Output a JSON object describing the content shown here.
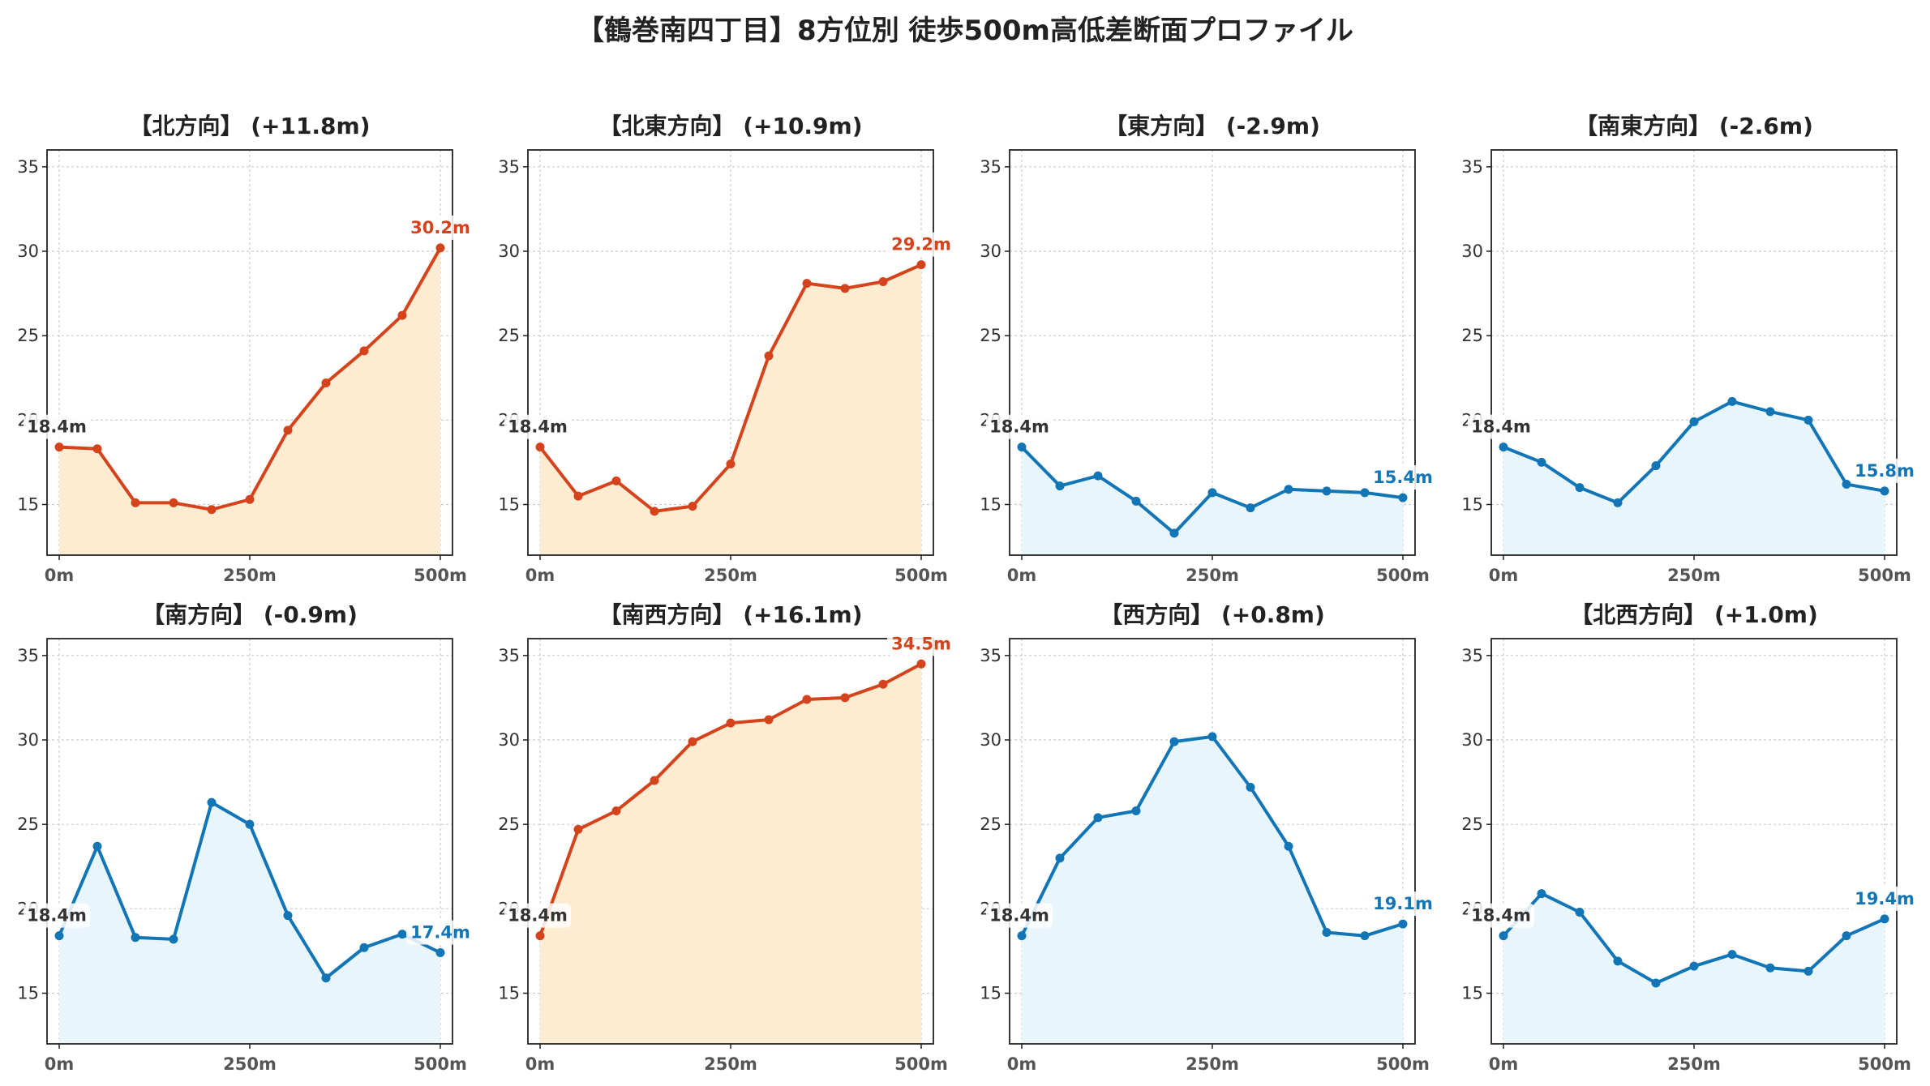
{
  "title": "【鶴巻南四丁目】8方位別 徒歩500m高低差断面プロファイル",
  "colors": {
    "up_line": "#d4431b",
    "up_fill": "#fdecd2",
    "down_line": "#1175b6",
    "down_fill": "#e8f5fb",
    "start_label": "#333333",
    "grid": "#cccccc"
  },
  "chart_data": [
    {
      "type": "area",
      "title": "【北方向】 (+11.8m)",
      "trend": "up",
      "x": [
        0,
        50,
        100,
        150,
        200,
        250,
        300,
        350,
        400,
        450,
        500
      ],
      "y": [
        18.4,
        18.3,
        15.1,
        15.1,
        14.7,
        15.3,
        19.4,
        22.2,
        24.1,
        26.2,
        30.2
      ],
      "start_label": "18.4m",
      "end_label": "30.2m",
      "xticks": [
        "0m",
        "250m",
        "500m"
      ],
      "yticks": [
        "15",
        "20",
        "25",
        "30",
        "35"
      ],
      "xlim": [
        0,
        500
      ],
      "ylim": [
        12,
        36
      ],
      "grid": true
    },
    {
      "type": "area",
      "title": "【北東方向】 (+10.9m)",
      "trend": "up",
      "x": [
        0,
        50,
        100,
        150,
        200,
        250,
        300,
        350,
        400,
        450,
        500
      ],
      "y": [
        18.4,
        15.5,
        16.4,
        14.6,
        14.9,
        17.4,
        23.8,
        28.1,
        27.8,
        28.2,
        29.2
      ],
      "start_label": "18.4m",
      "end_label": "29.2m",
      "xticks": [
        "0m",
        "250m",
        "500m"
      ],
      "yticks": [
        "15",
        "20",
        "25",
        "30",
        "35"
      ],
      "xlim": [
        0,
        500
      ],
      "ylim": [
        12,
        36
      ],
      "grid": true
    },
    {
      "type": "area",
      "title": "【東方向】 (-2.9m)",
      "trend": "down",
      "x": [
        0,
        50,
        100,
        150,
        200,
        250,
        300,
        350,
        400,
        450,
        500
      ],
      "y": [
        18.4,
        16.1,
        16.7,
        15.2,
        13.3,
        15.7,
        14.8,
        15.9,
        15.8,
        15.7,
        15.4
      ],
      "start_label": "18.4m",
      "end_label": "15.4m",
      "xticks": [
        "0m",
        "250m",
        "500m"
      ],
      "yticks": [
        "15",
        "20",
        "25",
        "30",
        "35"
      ],
      "xlim": [
        0,
        500
      ],
      "ylim": [
        12,
        36
      ],
      "grid": true
    },
    {
      "type": "area",
      "title": "【南東方向】 (-2.6m)",
      "trend": "down",
      "x": [
        0,
        50,
        100,
        150,
        200,
        250,
        300,
        350,
        400,
        450,
        500
      ],
      "y": [
        18.4,
        17.5,
        16.0,
        15.1,
        17.3,
        19.9,
        21.1,
        20.5,
        20.0,
        16.2,
        15.8
      ],
      "start_label": "18.4m",
      "end_label": "15.8m",
      "xticks": [
        "0m",
        "250m",
        "500m"
      ],
      "yticks": [
        "15",
        "20",
        "25",
        "30",
        "35"
      ],
      "xlim": [
        0,
        500
      ],
      "ylim": [
        12,
        36
      ],
      "grid": true
    },
    {
      "type": "area",
      "title": "【南方向】 (-0.9m)",
      "trend": "down",
      "x": [
        0,
        50,
        100,
        150,
        200,
        250,
        300,
        350,
        400,
        450,
        500
      ],
      "y": [
        18.4,
        23.7,
        18.3,
        18.2,
        26.3,
        25.0,
        19.6,
        15.9,
        17.7,
        18.5,
        17.4
      ],
      "start_label": "18.4m",
      "end_label": "17.4m",
      "xticks": [
        "0m",
        "250m",
        "500m"
      ],
      "yticks": [
        "15",
        "20",
        "25",
        "30",
        "35"
      ],
      "xlim": [
        0,
        500
      ],
      "ylim": [
        12,
        36
      ],
      "grid": true
    },
    {
      "type": "area",
      "title": "【南西方向】 (+16.1m)",
      "trend": "up",
      "x": [
        0,
        50,
        100,
        150,
        200,
        250,
        300,
        350,
        400,
        450,
        500
      ],
      "y": [
        18.4,
        24.7,
        25.8,
        27.6,
        29.9,
        31.0,
        31.2,
        32.4,
        32.5,
        33.3,
        34.5
      ],
      "start_label": "18.4m",
      "end_label": "34.5m",
      "xticks": [
        "0m",
        "250m",
        "500m"
      ],
      "yticks": [
        "15",
        "20",
        "25",
        "30",
        "35"
      ],
      "xlim": [
        0,
        500
      ],
      "ylim": [
        12,
        36
      ],
      "grid": true
    },
    {
      "type": "area",
      "title": "【西方向】 (+0.8m)",
      "trend": "down",
      "x": [
        0,
        50,
        100,
        150,
        200,
        250,
        300,
        350,
        400,
        450,
        500
      ],
      "y": [
        18.4,
        23.0,
        25.4,
        25.8,
        29.9,
        30.2,
        27.2,
        23.7,
        18.6,
        18.4,
        19.1
      ],
      "start_label": "18.4m",
      "end_label": "19.1m",
      "xticks": [
        "0m",
        "250m",
        "500m"
      ],
      "yticks": [
        "15",
        "20",
        "25",
        "30",
        "35"
      ],
      "xlim": [
        0,
        500
      ],
      "ylim": [
        12,
        36
      ],
      "grid": true
    },
    {
      "type": "area",
      "title": "【北西方向】 (+1.0m)",
      "trend": "down",
      "x": [
        0,
        50,
        100,
        150,
        200,
        250,
        300,
        350,
        400,
        450,
        500
      ],
      "y": [
        18.4,
        20.9,
        19.8,
        16.9,
        15.6,
        16.6,
        17.3,
        16.5,
        16.3,
        18.4,
        19.4
      ],
      "start_label": "18.4m",
      "end_label": "19.4m",
      "xticks": [
        "0m",
        "250m",
        "500m"
      ],
      "yticks": [
        "15",
        "20",
        "25",
        "30",
        "35"
      ],
      "xlim": [
        0,
        500
      ],
      "ylim": [
        12,
        36
      ],
      "grid": true
    }
  ]
}
